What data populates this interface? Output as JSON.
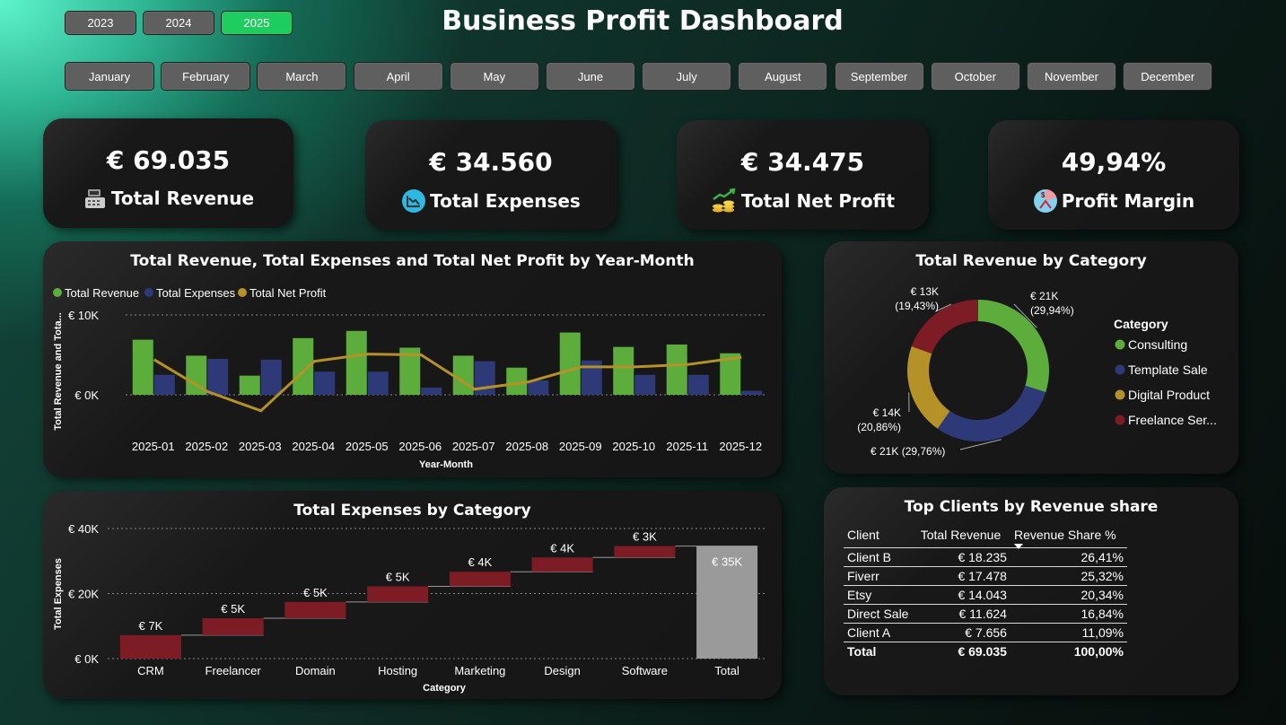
{
  "years": [
    "2023",
    "2024",
    "2025"
  ],
  "active_year": "2025",
  "months": [
    "January",
    "February",
    "March",
    "April",
    "May",
    "June",
    "July",
    "August",
    "September",
    "October",
    "November",
    "December"
  ],
  "title": "Business Profit Dashboard",
  "kpis": [
    {
      "value": "€ 69.035",
      "label": "Total Revenue",
      "icon": "cash-register-icon"
    },
    {
      "value": "€ 34.560",
      "label": "Total Expenses",
      "icon": "chart-down-icon"
    },
    {
      "value": "€ 34.475",
      "label": "Total Net Profit",
      "icon": "coins-growth-icon"
    },
    {
      "value": "49,94%",
      "label": "Profit Margin",
      "icon": "margin-icon"
    }
  ],
  "colors": {
    "green": "#5cad3c",
    "navy": "#2e3a78",
    "gold": "#b59227",
    "maroon": "#7d1c24",
    "gray": "#9a9a9a",
    "active_button": "#1fcc5f"
  },
  "combo_chart": {
    "title": "Total Revenue, Total Expenses and Total Net Profit by Year-Month",
    "legend": [
      "Total Revenue",
      "Total Expenses",
      "Total Net Profit"
    ],
    "xlabel": "Year-Month",
    "ylabel": "Total Revenue and Tota...",
    "yticks": [
      "€ 10K",
      "€ 0K"
    ]
  },
  "donut_chart": {
    "title": "Total Revenue by Category",
    "legend_title": "Category",
    "legend": [
      "Consulting",
      "Template Sale",
      "Digital Product",
      "Freelance Ser..."
    ],
    "labels": [
      {
        "value": "€ 21K",
        "pct": "(29,94%)"
      },
      {
        "value": "€ 21K (29,76%)",
        "pct": ""
      },
      {
        "value": "€ 14K",
        "pct": "(20,86%)"
      },
      {
        "value": "€ 13K",
        "pct": "(19,43%)"
      }
    ]
  },
  "waterfall_chart": {
    "title": "Total Expenses by Category",
    "xlabel": "Category",
    "ylabel": "Total Expenses",
    "yticks": [
      "€ 40K",
      "€ 20K",
      "€ 0K"
    ]
  },
  "clients_table": {
    "title": "Top Clients by Revenue share",
    "headers": [
      "Client",
      "Total Revenue",
      "Revenue Share %"
    ],
    "rows": [
      [
        "Client B",
        "€ 18.235",
        "26,41%"
      ],
      [
        "Fiverr",
        "€ 17.478",
        "25,32%"
      ],
      [
        "Etsy",
        "€ 14.043",
        "20,34%"
      ],
      [
        "Direct Sale",
        "€ 11.624",
        "16,84%"
      ],
      [
        "Client A",
        "€ 7.656",
        "11,09%"
      ]
    ],
    "total": [
      "Total",
      "€ 69.035",
      "100,00%"
    ]
  },
  "chart_data": [
    {
      "type": "bar",
      "title": "Total Revenue, Total Expenses and Total Net Profit by Year-Month",
      "xlabel": "Year-Month",
      "ylabel": "Total Revenue and Tota...",
      "categories": [
        "2025-01",
        "2025-02",
        "2025-03",
        "2025-04",
        "2025-05",
        "2025-06",
        "2025-07",
        "2025-08",
        "2025-09",
        "2025-10",
        "2025-11",
        "2025-12"
      ],
      "series": [
        {
          "name": "Total Revenue",
          "type": "bar",
          "values": [
            6900,
            4900,
            2400,
            7100,
            8000,
            5900,
            4900,
            3400,
            7800,
            6000,
            6300,
            5200
          ]
        },
        {
          "name": "Total Expenses",
          "type": "bar",
          "values": [
            2500,
            4500,
            4400,
            2900,
            2900,
            900,
            4200,
            1800,
            4300,
            2500,
            2500,
            500
          ]
        },
        {
          "name": "Total Net Profit",
          "type": "line",
          "values": [
            4400,
            400,
            -2000,
            4200,
            5100,
            5000,
            700,
            1600,
            3500,
            3500,
            3800,
            4700
          ]
        }
      ],
      "ylim": [
        -3000,
        10000
      ],
      "grid": true,
      "legend_position": "top-left"
    },
    {
      "type": "pie",
      "title": "Total Revenue by Category",
      "categories": [
        "Consulting",
        "Template Sale",
        "Digital Product",
        "Freelance Ser..."
      ],
      "values": [
        29.94,
        29.76,
        20.86,
        19.43
      ],
      "legend_position": "right"
    },
    {
      "type": "bar",
      "subtype": "waterfall",
      "title": "Total Expenses by Category",
      "xlabel": "Category",
      "ylabel": "Total Expenses",
      "categories": [
        "CRM",
        "Freelancer",
        "Domain",
        "Hosting",
        "Marketing",
        "Design",
        "Software",
        "Total"
      ],
      "values": [
        7200,
        5200,
        5000,
        4800,
        4500,
        4400,
        3500,
        34600
      ],
      "labels": [
        "€ 7K",
        "€ 5K",
        "€ 5K",
        "€ 5K",
        "€ 4K",
        "€ 4K",
        "€ 3K",
        "€ 35K"
      ],
      "ylim": [
        0,
        40000
      ],
      "grid": true
    }
  ]
}
